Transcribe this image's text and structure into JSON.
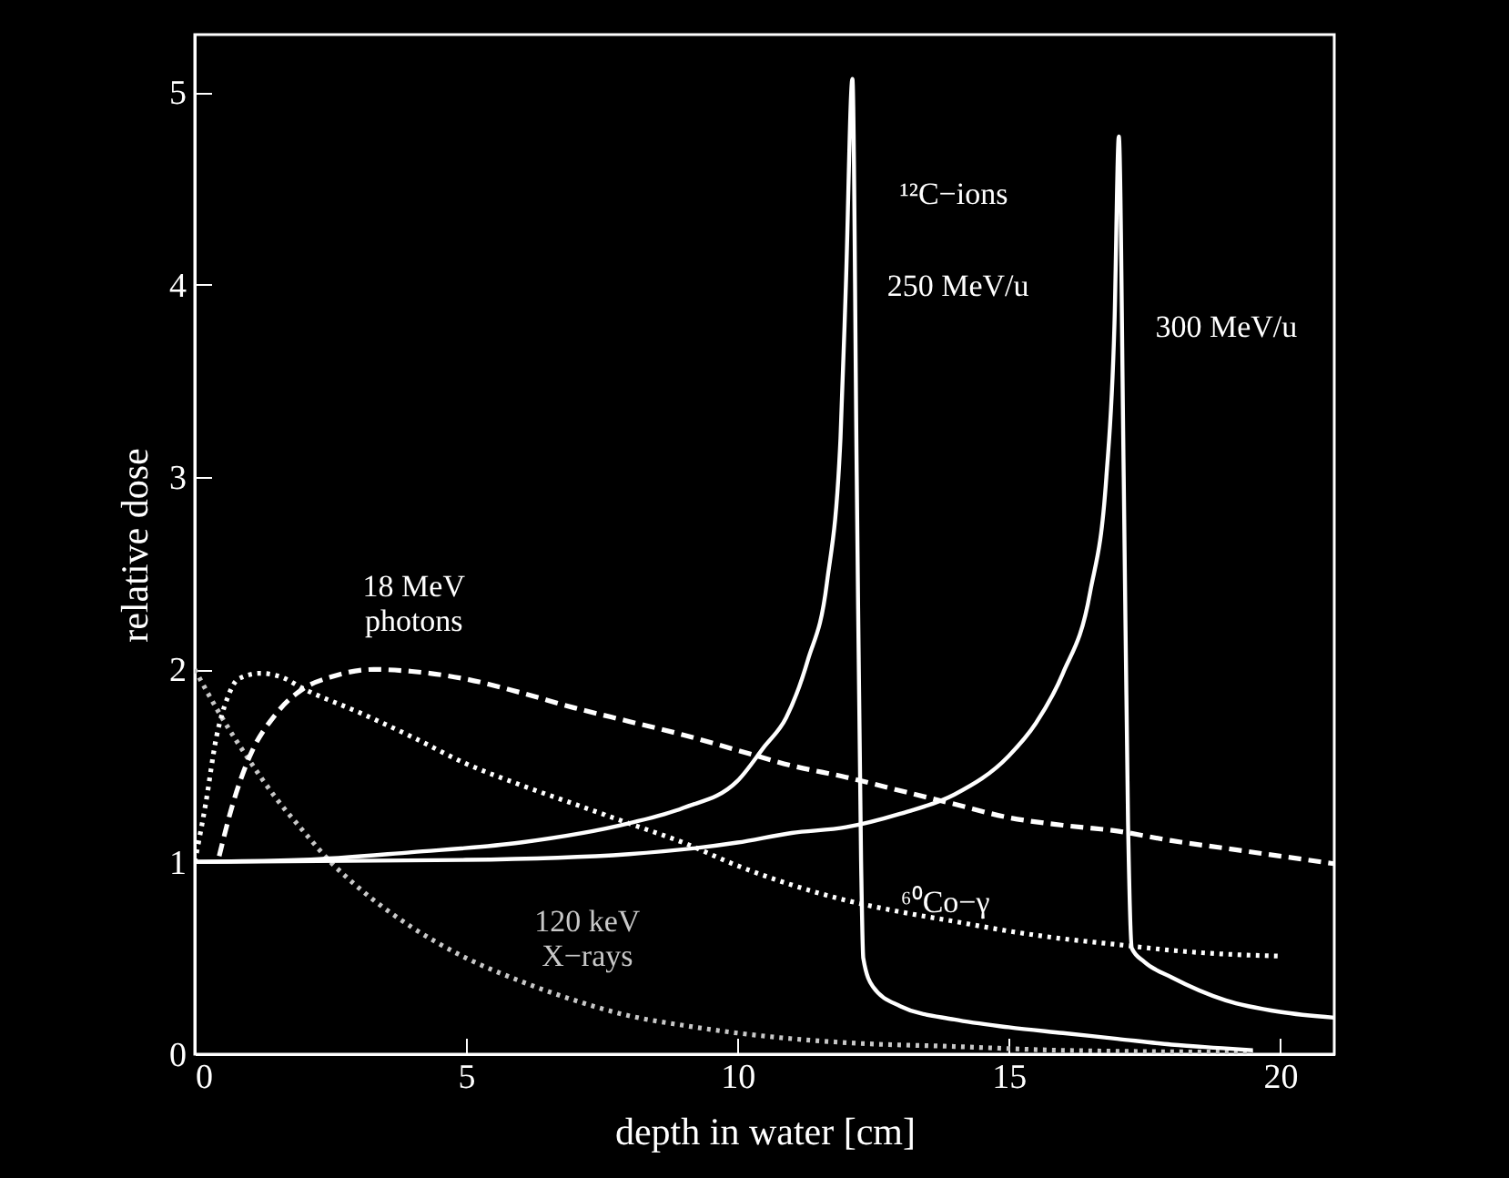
{
  "chart_data": {
    "type": "line",
    "xlabel": "depth in water [cm]",
    "ylabel": "relative dose",
    "xlim": [
      0,
      21
    ],
    "xticks": [
      0,
      5,
      10,
      15,
      20
    ],
    "ylim": [
      0,
      5.3
    ],
    "yticks": [
      0,
      1,
      2,
      3,
      4,
      5
    ],
    "series": [
      {
        "name": "120 keV X−rays",
        "color": "#c8c8c8",
        "line_style": "dotted",
        "x": [
          0,
          0.5,
          1,
          1.5,
          2,
          2.5,
          3,
          4,
          5,
          6,
          7,
          8,
          9,
          10,
          12,
          14,
          16,
          19.5
        ],
        "values": [
          2.0,
          1.75,
          1.53,
          1.33,
          1.16,
          1.0,
          0.87,
          0.66,
          0.5,
          0.38,
          0.28,
          0.2,
          0.15,
          0.11,
          0.06,
          0.04,
          0.02,
          0.01
        ]
      },
      {
        "name": "⁶⁰Co−γ",
        "color": "#ffffff",
        "line_style": "dotted",
        "x": [
          0,
          0.2,
          0.4,
          0.6,
          0.8,
          1.2,
          1.6,
          2,
          3,
          4,
          5,
          6,
          7,
          8,
          9,
          10,
          11,
          12,
          13,
          14,
          15,
          16,
          17,
          18,
          19,
          20
        ],
        "values": [
          1.0,
          1.3,
          1.65,
          1.85,
          1.95,
          1.98,
          1.96,
          1.9,
          1.78,
          1.65,
          1.51,
          1.4,
          1.3,
          1.2,
          1.1,
          0.98,
          0.88,
          0.8,
          0.74,
          0.69,
          0.64,
          0.6,
          0.57,
          0.54,
          0.52,
          0.51
        ]
      },
      {
        "name": "18 MeV photons",
        "color": "#ffffff",
        "line_style": "dashed",
        "x": [
          0.45,
          0.7,
          1,
          1.5,
          2,
          2.5,
          3.3,
          4,
          5,
          6,
          7,
          8,
          9,
          10,
          11,
          12,
          13,
          14,
          15,
          16,
          17,
          18,
          19,
          20,
          21
        ],
        "values": [
          1.03,
          1.3,
          1.54,
          1.77,
          1.9,
          1.96,
          2.0,
          1.99,
          1.95,
          1.88,
          1.8,
          1.73,
          1.66,
          1.58,
          1.5,
          1.44,
          1.37,
          1.3,
          1.23,
          1.19,
          1.16,
          1.11,
          1.07,
          1.03,
          0.99
        ]
      },
      {
        "name": "250 MeV/u",
        "color": "#ffffff",
        "line_style": "solid",
        "x": [
          0,
          2,
          4,
          6,
          8,
          9,
          10,
          10.5,
          10.9,
          11.3,
          11.65,
          11.9,
          12.0,
          12.12,
          12.2,
          12.28,
          12.32,
          12.5,
          13,
          14,
          15,
          16,
          17,
          18,
          19,
          19.5
        ],
        "values": [
          1.0,
          1.01,
          1.05,
          1.1,
          1.2,
          1.28,
          1.42,
          1.6,
          1.75,
          2.05,
          2.45,
          3.2,
          4.0,
          5.07,
          3.0,
          1.0,
          0.5,
          0.35,
          0.25,
          0.18,
          0.14,
          0.11,
          0.08,
          0.05,
          0.03,
          0.02
        ]
      },
      {
        "name": "300 MeV/u",
        "color": "#ffffff",
        "line_style": "solid",
        "x": [
          0,
          5,
          8,
          10,
          11,
          12,
          13,
          14,
          15,
          15.5,
          16,
          16.5,
          16.8,
          16.95,
          17.03,
          17.12,
          17.2,
          17.27,
          17.5,
          18,
          19,
          20,
          21
        ],
        "values": [
          1.0,
          1.01,
          1.04,
          1.1,
          1.15,
          1.18,
          1.25,
          1.35,
          1.55,
          1.72,
          1.98,
          2.4,
          3.0,
          3.8,
          4.77,
          3.0,
          1.2,
          0.55,
          0.48,
          0.4,
          0.28,
          0.22,
          0.19
        ]
      }
    ],
    "annotations": [
      "¹²C−ions"
    ]
  }
}
